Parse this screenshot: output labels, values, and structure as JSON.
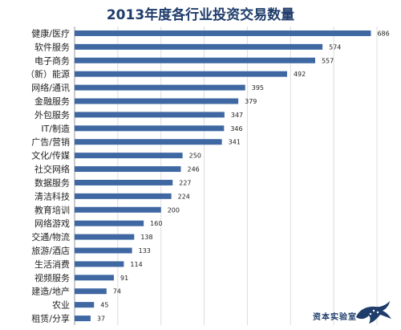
{
  "chart_data": {
    "type": "bar",
    "orientation": "horizontal",
    "title": "2013年度各行业投资交易数量",
    "categories": [
      "健康/医疗",
      "软件服务",
      "电子商务",
      "（新）能源",
      "网络/通讯",
      "金融服务",
      "外包服务",
      "IT/制造",
      "广告/营销",
      "文化/传媒",
      "社交网络",
      "数据服务",
      "清洁科技",
      "教育培训",
      "网络游戏",
      "交通/物流",
      "旅游/酒店",
      "生活消费",
      "视频服务",
      "建造/地产",
      "农业",
      "租赁/分享"
    ],
    "values": [
      686,
      574,
      557,
      492,
      395,
      379,
      347,
      346,
      341,
      250,
      246,
      227,
      224,
      200,
      160,
      138,
      133,
      114,
      91,
      74,
      45,
      37
    ],
    "xlim": [
      0,
      700
    ],
    "grid": true,
    "legend": "none",
    "colors": {
      "bar": "#3f68a3",
      "grid": "#dcdcdc",
      "title": "#1f3d6b"
    }
  },
  "watermark": {
    "text": "资本实验室",
    "icon": "leopard-logo"
  }
}
